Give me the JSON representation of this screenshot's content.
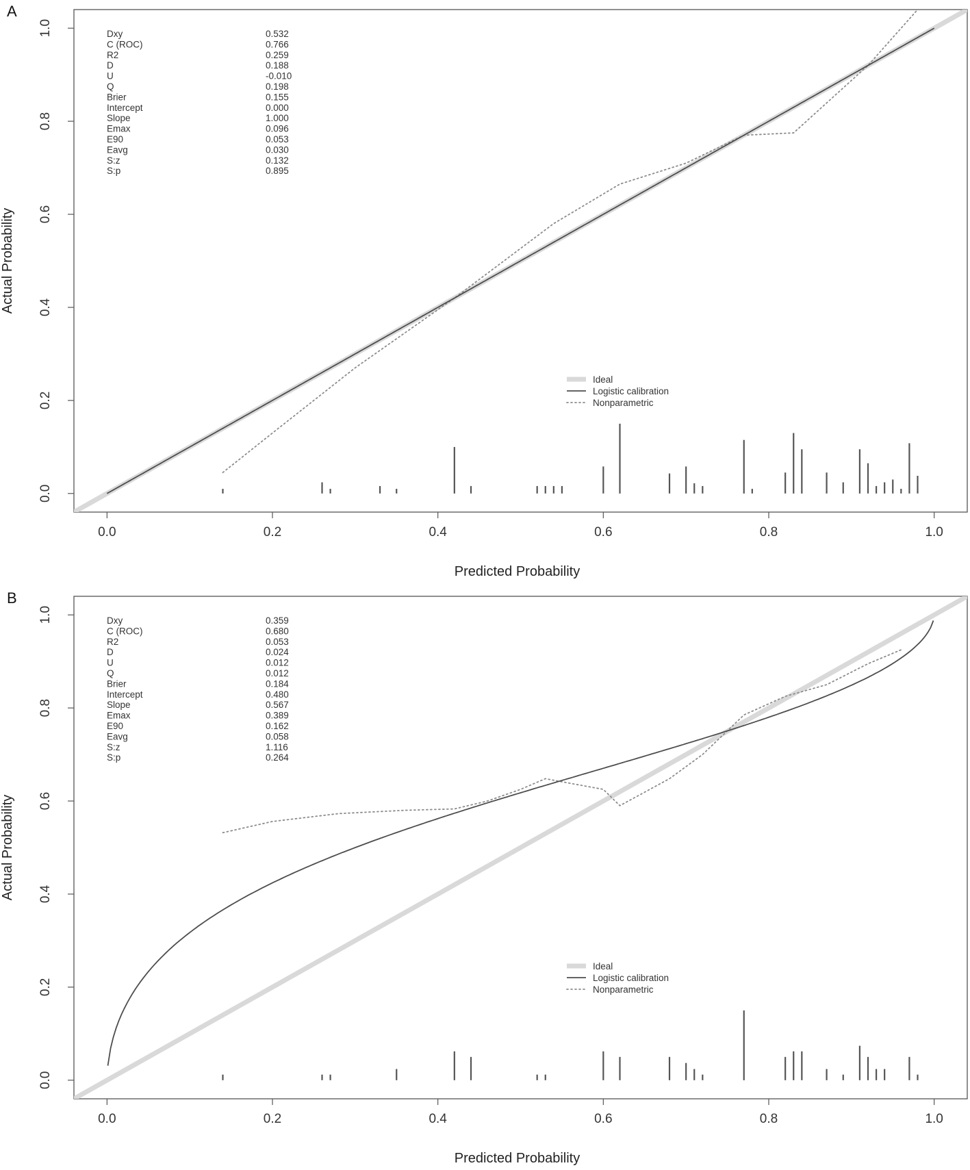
{
  "chart_data": [
    {
      "panel": "A",
      "type": "line",
      "xlabel": "Predicted Probability",
      "ylabel": "Actual Probability",
      "xlim": [
        -0.04,
        1.04
      ],
      "ylim": [
        -0.04,
        1.04
      ],
      "xticks": [
        "0.0",
        "0.2",
        "0.4",
        "0.6",
        "0.8",
        "1.0"
      ],
      "yticks": [
        "0.0",
        "0.2",
        "0.4",
        "0.6",
        "0.8",
        "1.0"
      ],
      "stats": [
        {
          "name": "Dxy",
          "value": "0.532"
        },
        {
          "name": "C (ROC)",
          "value": "0.766"
        },
        {
          "name": "R2",
          "value": "0.259"
        },
        {
          "name": "D",
          "value": "0.188"
        },
        {
          "name": "U",
          "value": "-0.010"
        },
        {
          "name": "Q",
          "value": "0.198"
        },
        {
          "name": "Brier",
          "value": "0.155"
        },
        {
          "name": "Intercept",
          "value": "0.000"
        },
        {
          "name": "Slope",
          "value": "1.000"
        },
        {
          "name": "Emax",
          "value": "0.096"
        },
        {
          "name": "E90",
          "value": "0.053"
        },
        {
          "name": "Eavg",
          "value": "0.030"
        },
        {
          "name": "S:z",
          "value": "0.132"
        },
        {
          "name": "S:p",
          "value": "0.895"
        }
      ],
      "legend": {
        "position": "lower-center-right",
        "entries": [
          "Ideal",
          "Logistic calibration",
          "Nonparametric"
        ]
      },
      "intercept": 0.0,
      "slope": 1.0,
      "logistic_x_range": [
        0.0,
        1.0
      ],
      "nonparametric": [
        [
          0.14,
          0.045
        ],
        [
          0.2,
          0.13
        ],
        [
          0.3,
          0.27
        ],
        [
          0.42,
          0.42
        ],
        [
          0.48,
          0.5
        ],
        [
          0.54,
          0.58
        ],
        [
          0.62,
          0.665
        ],
        [
          0.7,
          0.71
        ],
        [
          0.77,
          0.77
        ],
        [
          0.83,
          0.775
        ],
        [
          0.92,
          0.92
        ],
        [
          0.98,
          1.04
        ]
      ],
      "rug": [
        [
          0.14,
          0.01
        ],
        [
          0.26,
          0.024
        ],
        [
          0.27,
          0.01
        ],
        [
          0.33,
          0.016
        ],
        [
          0.35,
          0.01
        ],
        [
          0.42,
          0.1
        ],
        [
          0.44,
          0.016
        ],
        [
          0.52,
          0.016
        ],
        [
          0.53,
          0.016
        ],
        [
          0.54,
          0.016
        ],
        [
          0.55,
          0.016
        ],
        [
          0.6,
          0.058
        ],
        [
          0.62,
          0.15
        ],
        [
          0.68,
          0.043
        ],
        [
          0.7,
          0.058
        ],
        [
          0.71,
          0.022
        ],
        [
          0.72,
          0.016
        ],
        [
          0.77,
          0.115
        ],
        [
          0.78,
          0.01
        ],
        [
          0.82,
          0.045
        ],
        [
          0.83,
          0.13
        ],
        [
          0.84,
          0.095
        ],
        [
          0.87,
          0.045
        ],
        [
          0.89,
          0.024
        ],
        [
          0.91,
          0.095
        ],
        [
          0.92,
          0.065
        ],
        [
          0.93,
          0.016
        ],
        [
          0.94,
          0.024
        ],
        [
          0.95,
          0.03
        ],
        [
          0.96,
          0.01
        ],
        [
          0.97,
          0.108
        ],
        [
          0.98,
          0.038
        ]
      ]
    },
    {
      "panel": "B",
      "type": "line",
      "xlabel": "Predicted Probability",
      "ylabel": "Actual Probability",
      "xlim": [
        -0.04,
        1.04
      ],
      "ylim": [
        -0.04,
        1.04
      ],
      "xticks": [
        "0.0",
        "0.2",
        "0.4",
        "0.6",
        "0.8",
        "1.0"
      ],
      "yticks": [
        "0.0",
        "0.2",
        "0.4",
        "0.6",
        "0.8",
        "1.0"
      ],
      "stats": [
        {
          "name": "Dxy",
          "value": "0.359"
        },
        {
          "name": "C (ROC)",
          "value": "0.680"
        },
        {
          "name": "R2",
          "value": "0.053"
        },
        {
          "name": "D",
          "value": "0.024"
        },
        {
          "name": "U",
          "value": "0.012"
        },
        {
          "name": "Q",
          "value": "0.012"
        },
        {
          "name": "Brier",
          "value": "0.184"
        },
        {
          "name": "Intercept",
          "value": "0.480"
        },
        {
          "name": "Slope",
          "value": "0.567"
        },
        {
          "name": "Emax",
          "value": "0.389"
        },
        {
          "name": "E90",
          "value": "0.162"
        },
        {
          "name": "Eavg",
          "value": "0.058"
        },
        {
          "name": "S:z",
          "value": "1.116"
        },
        {
          "name": "S:p",
          "value": "0.264"
        }
      ],
      "legend": {
        "position": "lower-center-right",
        "entries": [
          "Ideal",
          "Logistic calibration",
          "Nonparametric"
        ]
      },
      "intercept": 0.48,
      "slope": 0.567,
      "logistic_x_range": [
        0.001,
        0.999
      ],
      "nonparametric": [
        [
          0.14,
          0.532
        ],
        [
          0.2,
          0.556
        ],
        [
          0.28,
          0.573
        ],
        [
          0.36,
          0.58
        ],
        [
          0.42,
          0.583
        ],
        [
          0.46,
          0.6
        ],
        [
          0.5,
          0.625
        ],
        [
          0.53,
          0.648
        ],
        [
          0.56,
          0.638
        ],
        [
          0.6,
          0.625
        ],
        [
          0.62,
          0.59
        ],
        [
          0.68,
          0.648
        ],
        [
          0.72,
          0.7
        ],
        [
          0.77,
          0.785
        ],
        [
          0.82,
          0.825
        ],
        [
          0.87,
          0.85
        ],
        [
          0.92,
          0.895
        ],
        [
          0.96,
          0.925
        ]
      ],
      "rug": [
        [
          0.14,
          0.012
        ],
        [
          0.26,
          0.012
        ],
        [
          0.27,
          0.012
        ],
        [
          0.35,
          0.024
        ],
        [
          0.42,
          0.062
        ],
        [
          0.44,
          0.05
        ],
        [
          0.52,
          0.012
        ],
        [
          0.53,
          0.012
        ],
        [
          0.6,
          0.062
        ],
        [
          0.62,
          0.05
        ],
        [
          0.68,
          0.05
        ],
        [
          0.7,
          0.037
        ],
        [
          0.71,
          0.024
        ],
        [
          0.72,
          0.012
        ],
        [
          0.77,
          0.15
        ],
        [
          0.82,
          0.05
        ],
        [
          0.83,
          0.062
        ],
        [
          0.84,
          0.062
        ],
        [
          0.87,
          0.024
        ],
        [
          0.89,
          0.012
        ],
        [
          0.91,
          0.074
        ],
        [
          0.92,
          0.05
        ],
        [
          0.93,
          0.024
        ],
        [
          0.94,
          0.024
        ],
        [
          0.97,
          0.05
        ],
        [
          0.98,
          0.012
        ]
      ]
    }
  ],
  "panels": {
    "a": {
      "letter": "A"
    },
    "b": {
      "letter": "B"
    }
  },
  "style": {
    "ideal_color": "#d9d9d9",
    "logistic_color": "#4d4d4d",
    "nonparametric_color": "#8c8c8c",
    "rug_color": "#555555",
    "frame_color": "#555555"
  }
}
